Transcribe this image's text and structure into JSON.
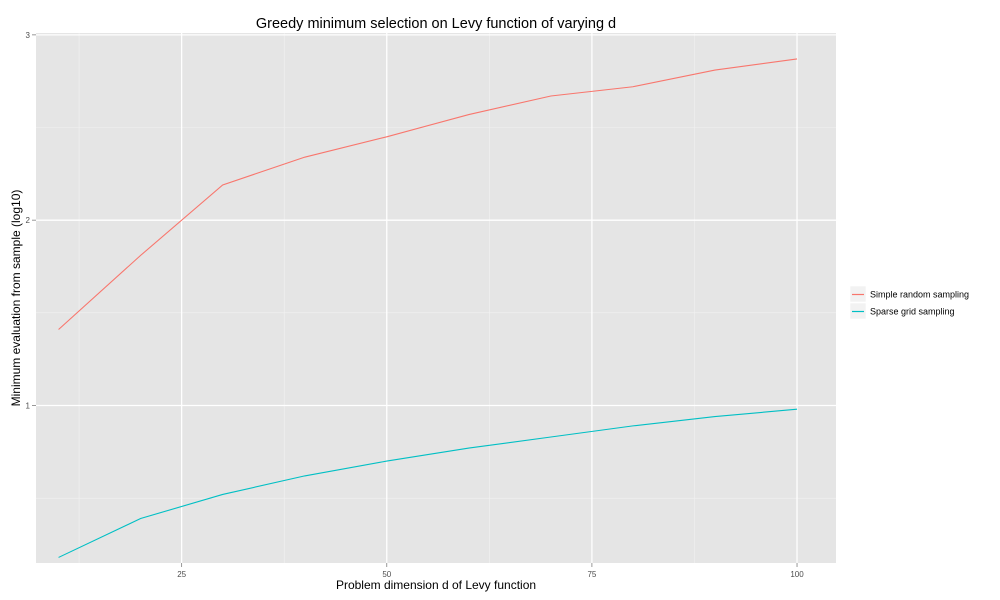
{
  "chart_data": {
    "type": "line",
    "title": "Greedy minimum selection on Levy function of varying d",
    "xlabel": "Problem dimension d of Levy function",
    "ylabel": "Minimum evaluation from sample (log10)",
    "x_ticks": [
      25,
      50,
      75,
      100
    ],
    "y_ticks": [
      1,
      2,
      3
    ],
    "xlim": [
      7.25,
      104.75
    ],
    "ylim": [
      0.15,
      3.01
    ],
    "x": [
      10,
      20,
      30,
      40,
      50,
      60,
      70,
      80,
      90,
      100
    ],
    "series": [
      {
        "name": "Simple random sampling",
        "color": "#F8766D",
        "values": [
          1.41,
          1.81,
          2.19,
          2.34,
          2.45,
          2.57,
          2.67,
          2.72,
          2.81,
          2.87
        ]
      },
      {
        "name": "Sparse grid sampling",
        "color": "#00BFC4",
        "values": [
          0.18,
          0.39,
          0.52,
          0.62,
          0.7,
          0.77,
          0.83,
          0.89,
          0.94,
          0.98
        ]
      }
    ],
    "grid": true,
    "legend_position": "right"
  }
}
